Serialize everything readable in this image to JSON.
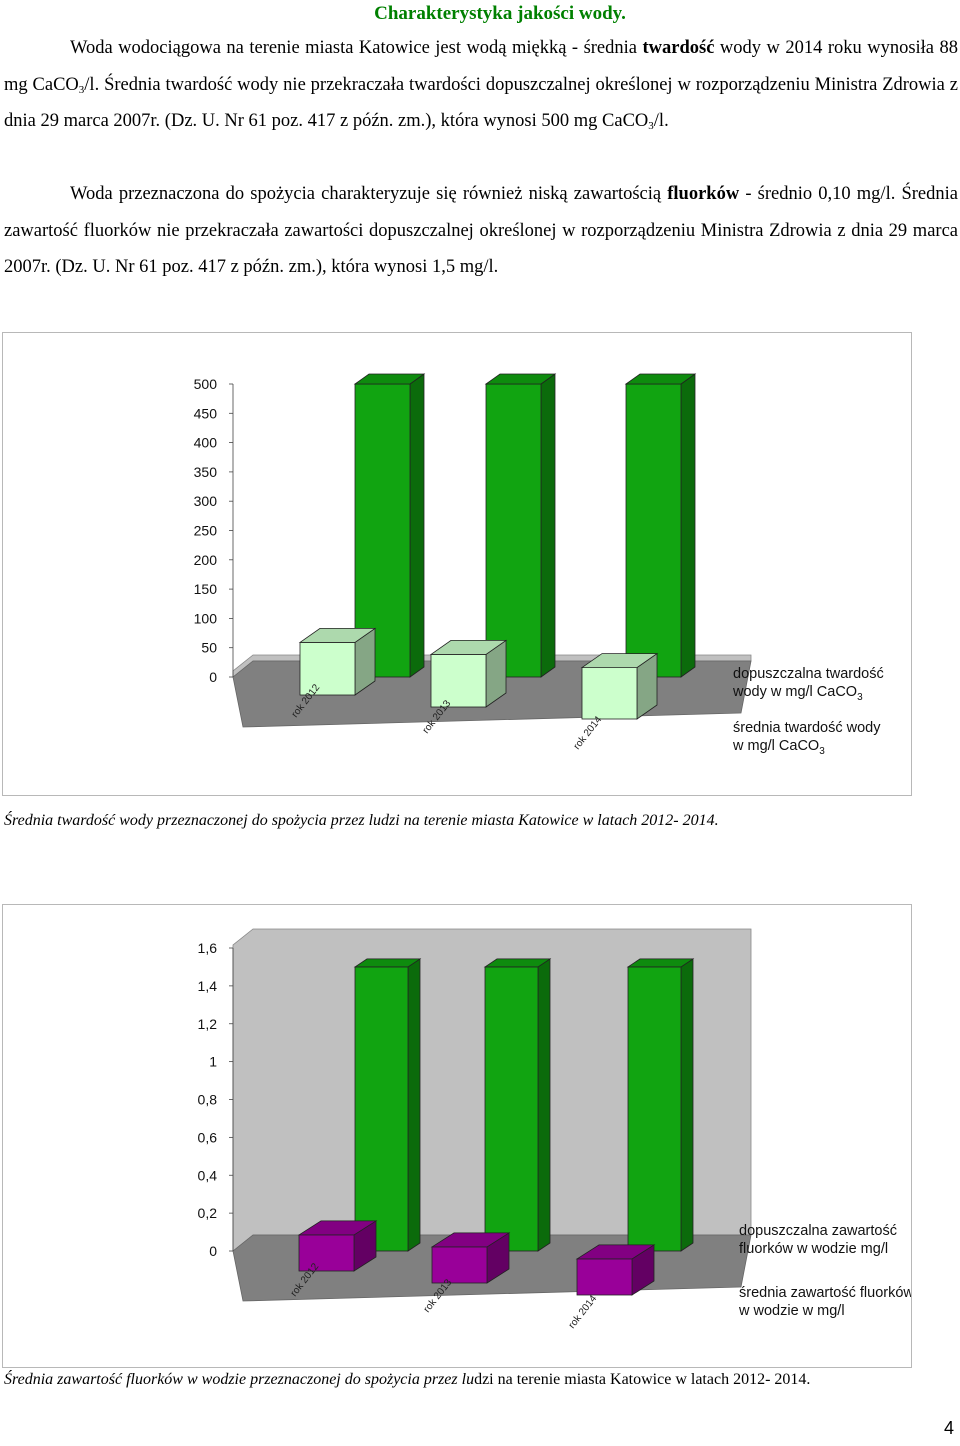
{
  "heading": "Charakterystyka jakości wody.",
  "paragraph1": {
    "a": "Woda wodociągowa na terenie miasta Katowice jest wodą miękką - średnia ",
    "b": "twardość",
    "c": " wody w 2014 roku wynosiła 88 mg CaCO",
    "d": "3",
    "e": "/l. Średnia twardość wody nie przekraczała twardości dopuszczalnej określonej w rozporządzeniu Ministra Zdrowia z dnia 29 marca 2007r. (Dz. U. Nr 61 poz. 417 z późn. zm.), która wynosi 500 mg CaCO",
    "f": "3",
    "g": "/l."
  },
  "paragraph2": {
    "a": "Woda przeznaczona do spożycia charakteryzuje się również niską zawartością ",
    "b": "fluorków",
    "c": " - średnio 0,10 mg/l. Średnia zawartość fluorków nie przekraczała zawartości dopuszczalnej określonej w rozporządzeniu Ministra Zdrowia z dnia 29 marca 2007r. (Dz. U. Nr 61 poz. 417 z późn. zm.), która wynosi 1,5 mg/l."
  },
  "chart_data": [
    {
      "type": "bar",
      "categories": [
        "rok 2012",
        "rok 2013",
        "rok 2014"
      ],
      "yticks": [
        "0",
        "50",
        "100",
        "150",
        "200",
        "250",
        "300",
        "350",
        "400",
        "450",
        "500"
      ],
      "ylim": [
        0,
        500
      ],
      "grid": false,
      "legend_position": "right",
      "series": [
        {
          "name": "dopuszczalna twardość wody w mg/l CaCO3",
          "name_main": "dopuszczalna  twardość",
          "name_line2": "wody w mg/l CaCO",
          "name_sub": "3",
          "values": [
            500,
            500,
            500
          ],
          "color": "#11a411"
        },
        {
          "name": "średnia twardość wody w mg/l CaCO3",
          "name_main": "średnia twardość  wody",
          "name_line2": "w mg/l CaCO",
          "name_sub": "3",
          "values": [
            90,
            90,
            88
          ],
          "color": "#ccffcc"
        }
      ]
    },
    {
      "type": "bar",
      "categories": [
        "rok 2012",
        "rok 2013",
        "rok 2014"
      ],
      "yticks": [
        "0",
        "0,2",
        "0,4",
        "0,6",
        "0,8",
        "1",
        "1,2",
        "1,4",
        "1,6"
      ],
      "ylim": [
        0,
        1.6
      ],
      "grid": false,
      "legend_position": "right",
      "series": [
        {
          "name": "dopuszczalna zawartość fluorków w wodzie mg/l",
          "name_main": "dopuszczalna  zawartość",
          "name_line2": "fluorków w wodzie  mg/l",
          "name_sub": "",
          "values": [
            1.5,
            1.5,
            1.5
          ],
          "color": "#11a411"
        },
        {
          "name": "średnia zawartość fluorków w wodzie w mg/l",
          "name_main": "średnia zawartość  fluorków",
          "name_line2": "w wodzie  w mg/l",
          "name_sub": "",
          "values": [
            0.1,
            0.1,
            0.1
          ],
          "color": "#990099"
        }
      ]
    }
  ],
  "caption1": "Średnia twardość wody przeznaczonej do spożycia przez ludzi na terenie miasta Katowice w latach 2012- 2014.",
  "caption2_italic": "Średnia zawartość fluorków w wodzie przeznaczonej do spożycia przez lu",
  "caption2_plain": "dzi na terenie miasta Katowice w latach 2012- 2014.",
  "page_number": "4",
  "colors": {
    "heading": "#008000",
    "wall": "#c0c0c0",
    "floor": "#808080"
  }
}
